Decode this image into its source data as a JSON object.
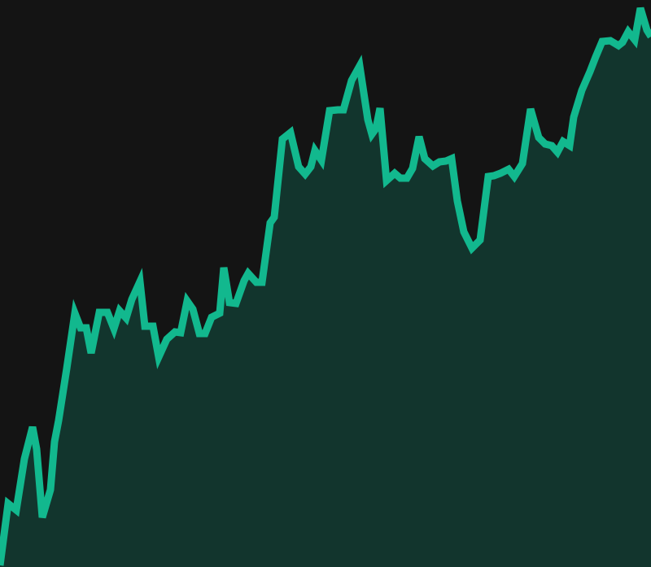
{
  "chart_data": {
    "type": "area",
    "title": "",
    "xlabel": "",
    "ylabel": "",
    "grid": false,
    "legend": false,
    "ylim": [
      0,
      697
    ],
    "x": [
      0,
      10,
      20,
      30,
      40,
      45,
      52,
      62,
      67,
      72,
      82,
      92,
      99,
      106,
      112,
      122,
      132,
      140,
      147,
      155,
      162,
      172,
      178,
      188,
      195,
      205,
      215,
      222,
      230,
      237,
      245,
      252,
      260,
      270,
      275,
      282,
      290,
      300,
      305,
      315,
      322,
      332,
      337,
      347,
      357,
      367,
      375,
      382,
      387,
      395,
      405,
      415,
      422,
      432,
      442,
      452,
      457,
      462,
      467,
      475,
      485,
      492,
      500,
      507,
      515,
      522,
      532,
      540,
      548,
      555,
      562,
      570,
      580,
      590,
      600,
      607,
      615,
      625,
      632,
      642,
      652,
      662,
      670,
      678,
      685,
      692,
      700,
      705,
      715,
      725,
      732,
      740,
      750,
      760,
      765,
      772,
      780,
      787,
      795,
      800
    ],
    "values": [
      2,
      78,
      70,
      133,
      172,
      145,
      61,
      95,
      154,
      180,
      244,
      312,
      294,
      294,
      263,
      313,
      313,
      293,
      315,
      306,
      329,
      351,
      296,
      296,
      258,
      280,
      289,
      288,
      327,
      317,
      287,
      287,
      307,
      312,
      368,
      325,
      324,
      352,
      361,
      350,
      350,
      423,
      430,
      526,
      534,
      492,
      483,
      492,
      512,
      500,
      561,
      562,
      562,
      598,
      616,
      550,
      532,
      539,
      564,
      475,
      484,
      478,
      478,
      490,
      529,
      502,
      493,
      498,
      499,
      502,
      450,
      412,
      392,
      402,
      480,
      481,
      484,
      489,
      480,
      496,
      563,
      528,
      520,
      518,
      510,
      523,
      518,
      553,
      586,
      609,
      627,
      646,
      647,
      641,
      645,
      658,
      648,
      687,
      660,
      652
    ],
    "colors": {
      "background": "#141414",
      "line": "#12b88e",
      "fill": "#12352d"
    }
  }
}
